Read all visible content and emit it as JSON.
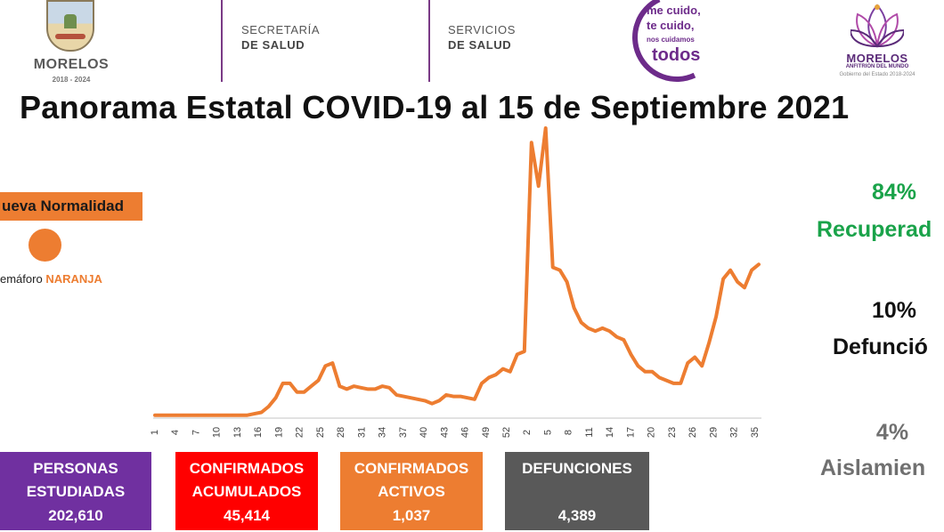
{
  "header": {
    "logo_state": {
      "name": "MORELOS",
      "years": "2018 - 2024"
    },
    "secretaria": {
      "line1": "SECRETARÍA",
      "line2": "DE SALUD"
    },
    "servicios": {
      "line1": "SERVICIOS",
      "line2": "DE SALUD"
    },
    "campaign": {
      "line1": "me cuido,",
      "line2": "te cuido,",
      "line3": "nos cuidamos",
      "line4": "todos"
    },
    "logo_gov": {
      "name": "MORELOS",
      "tagline": "ANFITRIÓN DEL MUNDO",
      "sub": "Gobierno del Estado 2018-2024"
    }
  },
  "title": "Panorama Estatal COVID-19 al 15 de Septiembre 2021",
  "status": {
    "label": "ueva Normalidad",
    "semaforo_prefix": "emáforo",
    "semaforo_level": "NARANJA",
    "color": "#ed7d31"
  },
  "stats": {
    "recovered": {
      "pct": "84%",
      "label": "Recuperad",
      "color": "#1aa34a"
    },
    "deaths": {
      "pct": "10%",
      "label": "Defunció",
      "color": "#111111"
    },
    "isolation": {
      "pct": "4%",
      "label": "Aislamien",
      "color": "#707070"
    }
  },
  "boxes": [
    {
      "label1": "PERSONAS",
      "label2": "ESTUDIADAS",
      "value": "202,610",
      "color": "#7030a0"
    },
    {
      "label1": "CONFIRMADOS",
      "label2": "ACUMULADOS",
      "value": "45,414",
      "color": "#ff0000"
    },
    {
      "label1": "CONFIRMADOS",
      "label2": "ACTIVOS",
      "value": "1,037",
      "color": "#ed7d31"
    },
    {
      "label1": "DEFUNCIONES",
      "label2": "",
      "value": "4,389",
      "color": "#595959"
    }
  ],
  "chart_data": {
    "type": "line",
    "title": "",
    "xlabel": "",
    "ylabel": "",
    "color": "#ed7d31",
    "grid": false,
    "tick_labels": [
      "1",
      "4",
      "7",
      "10",
      "13",
      "16",
      "19",
      "22",
      "25",
      "28",
      "31",
      "34",
      "37",
      "40",
      "43",
      "46",
      "49",
      "52",
      "2",
      "5",
      "8",
      "11",
      "14",
      "17",
      "20",
      "23",
      "26",
      "29",
      "32",
      "35"
    ],
    "ylim": [
      0,
      100
    ],
    "values": [
      1,
      1,
      1,
      1,
      1,
      1,
      1,
      1,
      1,
      1,
      1,
      1,
      1,
      1,
      1.5,
      2,
      4,
      7,
      12,
      12,
      9,
      9,
      11,
      13,
      18,
      19,
      11,
      10,
      11,
      10.5,
      10,
      10,
      11,
      10.5,
      8,
      7.5,
      7,
      6.5,
      6,
      5,
      6,
      8,
      7.5,
      7.5,
      7,
      6.5,
      12,
      14,
      15,
      17,
      16,
      22,
      23,
      95,
      80,
      100,
      52,
      51,
      47,
      38,
      33,
      31,
      30,
      31,
      30,
      28,
      27,
      22,
      18,
      16,
      16,
      14,
      13,
      12,
      12,
      19,
      21,
      18,
      26,
      35,
      48,
      51,
      47,
      45,
      51,
      53
    ]
  }
}
